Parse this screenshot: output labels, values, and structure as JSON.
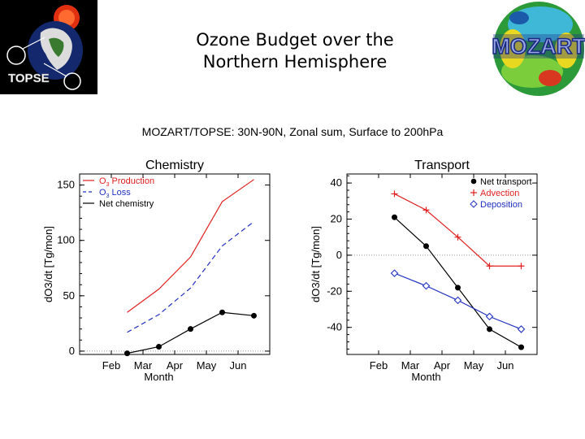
{
  "slide": {
    "title_line1": "Ozone Budget over the",
    "title_line2": "Northern Hemisphere",
    "logo_left_text": "TOPSE",
    "logo_right_text": "MOZART"
  },
  "figure_subtitle": "MOZART/TOPSE: 30N-90N, Zonal sum, Surface to 200hPa",
  "colors": {
    "production": "#e02020",
    "loss": "#2030c0",
    "net": "#000000",
    "advection": "#e02020",
    "deposition": "#2030c0"
  },
  "chart_data": [
    {
      "type": "line",
      "title": "Chemistry",
      "xlabel": "Month",
      "ylabel": "dO3/dt [Tg/mon]",
      "categories": [
        "Feb",
        "Mar",
        "Apr",
        "May",
        "Jun"
      ],
      "xlim": [
        0,
        6
      ],
      "ylim": [
        -3,
        160
      ],
      "yticks": [
        0,
        50,
        100,
        150
      ],
      "legend_position": "top-left",
      "series": [
        {
          "name": "O3 Production",
          "name_main": "O",
          "name_sub": "3",
          "name_rest": " Production",
          "style": "solid",
          "color": "#e02020",
          "markers": false,
          "x": [
            1.5,
            2.5,
            3.5,
            4.0,
            4.5,
            5.5
          ],
          "y": [
            35,
            56,
            85,
            110,
            135,
            155
          ]
        },
        {
          "name": "O3 Loss",
          "name_main": "O",
          "name_sub": "3",
          "name_rest": " Loss",
          "style": "dashed",
          "color": "#2030c0",
          "markers": false,
          "x": [
            1.5,
            2.5,
            3.5,
            4.5,
            5.5
          ],
          "y": [
            17,
            33,
            57,
            95,
            117
          ]
        },
        {
          "name": "Net chemistry",
          "style": "solid",
          "color": "#000000",
          "markers": true,
          "x": [
            1.5,
            2.5,
            3.5,
            4.5,
            5.5
          ],
          "y": [
            -2,
            4,
            20,
            35,
            32
          ]
        }
      ]
    },
    {
      "type": "line",
      "title": "Transport",
      "xlabel": "Month",
      "ylabel": "dO3/dt [Tg/mon]",
      "categories": [
        "Feb",
        "Mar",
        "Apr",
        "May",
        "Jun"
      ],
      "xlim": [
        0,
        6
      ],
      "ylim": [
        -55,
        45
      ],
      "yticks": [
        -40,
        -20,
        0,
        20,
        40
      ],
      "legend_position": "top-right",
      "series": [
        {
          "name": "Net transport",
          "style": "solid",
          "color": "#000000",
          "marker": "circle",
          "x": [
            1.5,
            2.5,
            3.5,
            4.5,
            5.5
          ],
          "y": [
            21,
            5,
            -18,
            -41,
            -51
          ]
        },
        {
          "name": "Advection",
          "style": "solid",
          "color": "#e02020",
          "marker": "plus",
          "x": [
            1.5,
            2.5,
            3.5,
            4.5,
            5.5
          ],
          "y": [
            34,
            25,
            10,
            -6,
            -6
          ]
        },
        {
          "name": "Deposition",
          "style": "solid",
          "color": "#2030c0",
          "marker": "diamond",
          "x": [
            1.5,
            2.5,
            3.5,
            4.5,
            5.5
          ],
          "y": [
            -10,
            -17,
            -25,
            -34,
            -41
          ]
        }
      ]
    }
  ]
}
